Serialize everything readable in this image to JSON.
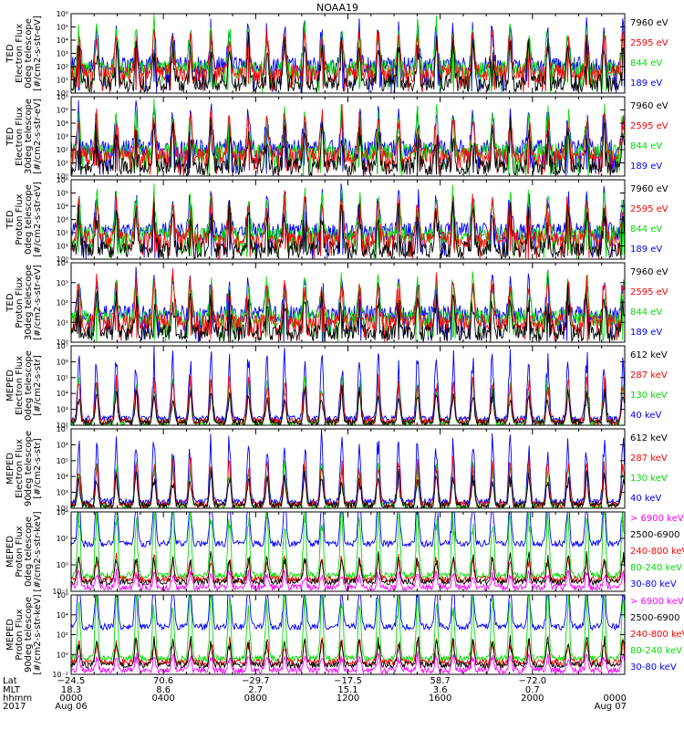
{
  "title": "NOAA19",
  "colors": {
    "blue": "#0000ff",
    "red": "#ff0000",
    "green": "#00dd00",
    "black": "#000000",
    "magenta": "#ff00ff"
  },
  "panels": [
    {
      "instrument": "TED",
      "quantity": "Electron Flux",
      "telescope": "0deg telescope",
      "units": "[#/cm2-s-str-eV]",
      "ylim_exp": [
        0,
        6
      ],
      "ticks": [
        "10⁰",
        "10¹",
        "10²",
        "10³",
        "10⁴",
        "10⁵",
        "10⁶"
      ],
      "legend": [
        {
          "label": "7960 eV",
          "color": "black"
        },
        {
          "label": "2595 eV",
          "color": "red"
        },
        {
          "label": "844 eV",
          "color": "green"
        },
        {
          "label": "189 eV",
          "color": "blue"
        }
      ]
    },
    {
      "instrument": "TED",
      "quantity": "Electron Flux",
      "telescope": "30deg telescope",
      "units": "[#/cm2-s-str-eV]",
      "ylim_exp": [
        0,
        6
      ],
      "ticks": [
        "10⁰",
        "10¹",
        "10²",
        "10³",
        "10⁴",
        "10⁵",
        "10⁶"
      ],
      "legend": [
        {
          "label": "7960 eV",
          "color": "black"
        },
        {
          "label": "2595 eV",
          "color": "red"
        },
        {
          "label": "844 eV",
          "color": "green"
        },
        {
          "label": "189 eV",
          "color": "blue"
        }
      ]
    },
    {
      "instrument": "TED",
      "quantity": "Proton Flux",
      "telescope": "0deg telescope",
      "units": "[#/cm2-s-str-eV]",
      "ylim_exp": [
        0,
        6
      ],
      "ticks": [
        "10⁰",
        "10¹",
        "10²",
        "10³",
        "10⁴",
        "10⁵",
        "10⁶"
      ],
      "legend": [
        {
          "label": "7960 eV",
          "color": "black"
        },
        {
          "label": "2595 eV",
          "color": "red"
        },
        {
          "label": "844 eV",
          "color": "green"
        },
        {
          "label": "189 eV",
          "color": "blue"
        }
      ]
    },
    {
      "instrument": "TED",
      "quantity": "Proton Flux",
      "telescope": "30deg telescope",
      "units": "[#/cm2-s-str-eV]",
      "ylim_exp": [
        0,
        5
      ],
      "ticks": [
        "10⁰",
        "10¹",
        "10²",
        "10³",
        "10⁴"
      ],
      "legend": [
        {
          "label": "7960 eV",
          "color": "black"
        },
        {
          "label": "2595 eV",
          "color": "red"
        },
        {
          "label": "844 eV",
          "color": "green"
        },
        {
          "label": "189 eV",
          "color": "blue"
        }
      ]
    },
    {
      "instrument": "MEPED",
      "quantity": "Electron Flux",
      "telescope": "0deg telescope",
      "units": "[#/cm2-s-str]",
      "ylim_exp": [
        2,
        7
      ],
      "ticks": [
        "10²",
        "10³",
        "10⁴",
        "10⁵",
        "10⁶",
        "10⁷"
      ],
      "legend": [
        {
          "label": "612 keV",
          "color": "black"
        },
        {
          "label": "287 keV",
          "color": "red"
        },
        {
          "label": "130 keV",
          "color": "green"
        },
        {
          "label": "40 keV",
          "color": "blue"
        }
      ]
    },
    {
      "instrument": "MEPED",
      "quantity": "Electron Flux",
      "telescope": "90deg telescope",
      "units": "[#/cm2-s-str]",
      "ylim_exp": [
        2,
        7
      ],
      "ticks": [
        "10²",
        "10³",
        "10⁴",
        "10⁵",
        "10⁶",
        "10⁷"
      ],
      "legend": [
        {
          "label": "612 keV",
          "color": "black"
        },
        {
          "label": "287 keV",
          "color": "red"
        },
        {
          "label": "130 keV",
          "color": "green"
        },
        {
          "label": "40 keV",
          "color": "blue"
        }
      ]
    },
    {
      "instrument": "MEPED",
      "quantity": "Proton Flux",
      "telescope": "0deg telescope",
      "units": "[#/cm2-s-str-keV]",
      "ylim_exp": [
        -2,
        5
      ],
      "ticks": [
        "10⁻²",
        "10⁰",
        "10²",
        "10⁴"
      ],
      "legend": [
        {
          "label": "> 6900 keV",
          "color": "magenta"
        },
        {
          "label": "2500-6900",
          "color": "black"
        },
        {
          "label": "240-800 keV",
          "color": "red"
        },
        {
          "label": "80-240 keV",
          "color": "green"
        },
        {
          "label": "30-80 keV",
          "color": "blue"
        }
      ]
    },
    {
      "instrument": "MEPED",
      "quantity": "Proton Flux",
      "telescope": "90deg telescope",
      "units": "[#/cm2-s-str-keV]",
      "ylim_exp": [
        -2,
        6
      ],
      "ticks": [
        "10⁻²",
        "10⁰",
        "10²",
        "10⁴",
        "10⁶"
      ],
      "legend": [
        {
          "label": "> 6900 keV",
          "color": "magenta"
        },
        {
          "label": "2500-6900",
          "color": "black"
        },
        {
          "label": "240-800 keV",
          "color": "red"
        },
        {
          "label": "80-240 keV",
          "color": "green"
        },
        {
          "label": "30-80 keV",
          "color": "blue"
        }
      ]
    }
  ],
  "footer": {
    "row_labels": [
      "Lat",
      "MLT",
      "hhmm",
      "2017"
    ],
    "columns": [
      {
        "lat": "−24.5",
        "mlt": "18.3",
        "hhmm": "0000",
        "date": "Aug 06"
      },
      {
        "lat": "70.6",
        "mlt": "8.6",
        "hhmm": "0400",
        "date": ""
      },
      {
        "lat": "−29.7",
        "mlt": "2.7",
        "hhmm": "0800",
        "date": ""
      },
      {
        "lat": "−17.5",
        "mlt": "15.1",
        "hhmm": "1200",
        "date": ""
      },
      {
        "lat": "58.7",
        "mlt": "3.6",
        "hhmm": "1600",
        "date": ""
      },
      {
        "lat": "−72.0",
        "mlt": "0.7",
        "hhmm": "2000",
        "date": ""
      },
      {
        "lat": "",
        "mlt": "",
        "hhmm": "0000",
        "date": "Aug 07"
      }
    ]
  },
  "chart_data": {
    "type": "line",
    "x_range_hours": [
      0,
      24
    ],
    "series_note": "eight stacked log-scale time-series panels, 4–5 energy channels each"
  }
}
